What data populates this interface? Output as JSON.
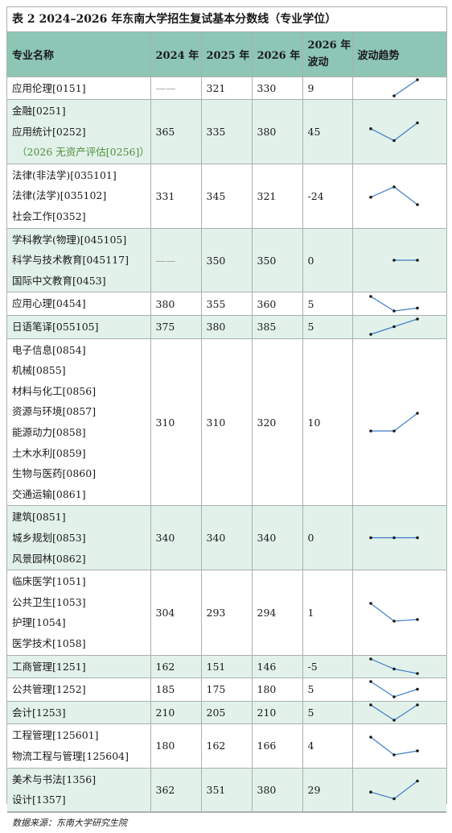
{
  "title": "表 2  2024–2026 年东南大学招生复试基本分数线（专业学位）",
  "headers": {
    "name": "专业名称",
    "y2024": "2024 年",
    "y2025": "2025 年",
    "y2026": "2026 年",
    "change_line1": "2026 年",
    "change_line2": "波动",
    "trend": "波动趋势"
  },
  "rows": [
    {
      "names": [
        "应用伦理[0151]"
      ],
      "note": "",
      "y2024": "——",
      "y2025": "321",
      "y2026": "330",
      "change": "9"
    },
    {
      "names": [
        "金融[0251]",
        "应用统计[0252]"
      ],
      "note": "（2026 无资产评估[0256]）",
      "y2024": "365",
      "y2025": "335",
      "y2026": "380",
      "change": "45"
    },
    {
      "names": [
        "法律(非法学)[035101]",
        "法律(法学)[035102]",
        "社会工作[0352]"
      ],
      "note": "",
      "y2024": "331",
      "y2025": "345",
      "y2026": "321",
      "change": "-24"
    },
    {
      "names": [
        "学科教学(物理)[045105]",
        "科学与技术教育[045117]",
        "国际中文教育[0453]"
      ],
      "note": "",
      "y2024": "——",
      "y2025": "350",
      "y2026": "350",
      "change": "0"
    },
    {
      "names": [
        "应用心理[0454]"
      ],
      "note": "",
      "y2024": "380",
      "y2025": "355",
      "y2026": "360",
      "change": "5"
    },
    {
      "names": [
        "日语笔译[055105]"
      ],
      "note": "",
      "y2024": "375",
      "y2025": "380",
      "y2026": "385",
      "change": "5"
    },
    {
      "names": [
        "电子信息[0854]",
        "机械[0855]",
        "材料与化工[0856]",
        "资源与环境[0857]",
        "能源动力[0858]",
        "土木水利[0859]",
        "生物与医药[0860]",
        "交通运输[0861]"
      ],
      "note": "",
      "y2024": "310",
      "y2025": "310",
      "y2026": "320",
      "change": "10"
    },
    {
      "names": [
        "建筑[0851]",
        "城乡规划[0853]",
        "风景园林[0862]"
      ],
      "note": "",
      "y2024": "340",
      "y2025": "340",
      "y2026": "340",
      "change": "0"
    },
    {
      "names": [
        "临床医学[1051]",
        "公共卫生[1053]",
        "护理[1054]",
        "医学技术[1058]"
      ],
      "note": "",
      "y2024": "304",
      "y2025": "293",
      "y2026": "294",
      "change": "1"
    },
    {
      "names": [
        "工商管理[1251]"
      ],
      "note": "",
      "y2024": "162",
      "y2025": "151",
      "y2026": "146",
      "change": "-5"
    },
    {
      "names": [
        "公共管理[1252]"
      ],
      "note": "",
      "y2024": "185",
      "y2025": "175",
      "y2026": "180",
      "change": "5"
    },
    {
      "names": [
        "会计[1253]"
      ],
      "note": "",
      "y2024": "210",
      "y2025": "205",
      "y2026": "210",
      "change": "5"
    },
    {
      "names": [
        "工程管理[125601]",
        "物流工程与管理[125604]"
      ],
      "note": "",
      "y2024": "180",
      "y2025": "162",
      "y2026": "166",
      "change": "4"
    },
    {
      "names": [
        "美术与书法[1356]",
        "设计[1357]"
      ],
      "note": "",
      "y2024": "362",
      "y2025": "351",
      "y2026": "380",
      "change": "29"
    }
  ],
  "source": "数据来源：东南大学研究生院",
  "colors": {
    "header_bg": "#8ec6b6",
    "alt_row_bg": "#e2f1ea",
    "note_text": "#4f8f3a",
    "sparkline": "#3d7dc8",
    "border": "#a9b1b0"
  }
}
